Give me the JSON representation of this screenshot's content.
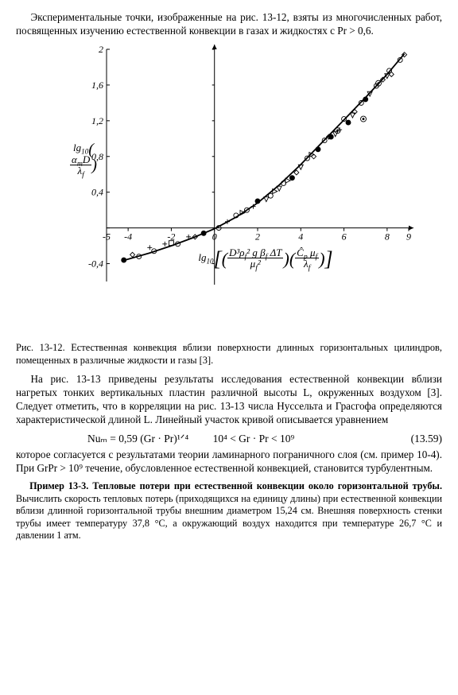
{
  "para1": "Экспериментальные точки, изображенные на рис. 13-12, взяты из многочисленных работ, посвященных изучению естественной конвекции в газах и жидкостях с Pr > 0,6.",
  "figure": {
    "caption_lead": "Рис. 13-12.",
    "caption_text": "Естественная конвекция вблизи поверхности длинных горизонтальных цилиндров, помещенных в различные жидкости и газы [3].",
    "xlabel": "lg₁₀[ (D³ρ²f g βf ΔT / μ²f) (Ĉp μf / λf) ]",
    "ylabel": "lg₁₀ (αm D / λf)",
    "xlim": [
      -5,
      9
    ],
    "ylim": [
      -0.6,
      2.0
    ],
    "xtick_positions": [
      -5,
      -4,
      -2,
      0,
      2,
      4,
      6,
      8,
      9
    ],
    "xtick_labels": [
      "-5",
      "-4",
      "-2",
      "0",
      "2",
      "4",
      "6",
      "8",
      "9"
    ],
    "ytick_positions": [
      -0.4,
      0,
      0.4,
      0.8,
      1.2,
      1.6,
      2.0
    ],
    "ytick_labels": [
      "-0,4",
      "0",
      "0,4",
      "0,8",
      "1,2",
      "1,6",
      "2"
    ],
    "curve": [
      [
        -4.3,
        -0.37
      ],
      [
        -3.0,
        -0.28
      ],
      [
        -2.0,
        -0.2
      ],
      [
        -1.0,
        -0.11
      ],
      [
        0.0,
        -0.01
      ],
      [
        1.0,
        0.12
      ],
      [
        2.0,
        0.28
      ],
      [
        3.0,
        0.48
      ],
      [
        4.0,
        0.71
      ],
      [
        5.0,
        0.96
      ],
      [
        6.0,
        1.21
      ],
      [
        7.0,
        1.46
      ],
      [
        8.0,
        1.72
      ],
      [
        8.8,
        1.95
      ]
    ],
    "markers": {
      "circle_open": [
        [
          -3.5,
          -0.32
        ],
        [
          -2.8,
          -0.26
        ],
        [
          -1.7,
          -0.18
        ],
        [
          0.2,
          0.0
        ],
        [
          1.0,
          0.14
        ],
        [
          1.5,
          0.2
        ],
        [
          2.6,
          0.36
        ],
        [
          3.2,
          0.5
        ],
        [
          4.3,
          0.78
        ],
        [
          5.1,
          0.98
        ],
        [
          6.0,
          1.22
        ],
        [
          6.8,
          1.4
        ],
        [
          7.5,
          1.59
        ],
        [
          8.1,
          1.76
        ],
        [
          8.6,
          1.88
        ]
      ],
      "circle_filled": [
        [
          -4.2,
          -0.36
        ],
        [
          -0.5,
          -0.06
        ],
        [
          2.0,
          0.3
        ],
        [
          3.6,
          0.56
        ],
        [
          4.8,
          0.88
        ],
        [
          5.4,
          1.02
        ],
        [
          6.2,
          1.18
        ],
        [
          7.0,
          1.44
        ]
      ],
      "plus": [
        [
          -3.0,
          -0.22
        ],
        [
          -2.3,
          -0.18
        ],
        [
          -1.2,
          -0.1
        ],
        [
          0.6,
          0.07
        ],
        [
          1.8,
          0.24
        ],
        [
          5.8,
          1.1
        ]
      ],
      "diamond_open": [
        [
          -3.8,
          -0.3
        ],
        [
          -0.9,
          -0.1
        ],
        [
          3.8,
          0.62
        ],
        [
          4.6,
          0.8
        ],
        [
          5.3,
          1.02
        ],
        [
          6.5,
          1.3
        ],
        [
          7.8,
          1.66
        ],
        [
          8.2,
          1.72
        ],
        [
          8.8,
          1.94
        ]
      ],
      "triangle_down": [
        [
          2.4,
          0.32
        ],
        [
          3.0,
          0.44
        ],
        [
          4.0,
          0.68
        ],
        [
          5.6,
          1.05
        ],
        [
          6.4,
          1.26
        ],
        [
          7.2,
          1.5
        ],
        [
          8.0,
          1.7
        ]
      ],
      "triangle_right": [
        [
          1.3,
          0.17
        ],
        [
          2.8,
          0.41
        ],
        [
          3.4,
          0.53
        ],
        [
          4.5,
          0.82
        ]
      ],
      "square_open": [
        [
          -2.0,
          -0.17
        ]
      ],
      "circle_dot": [
        [
          5.7,
          1.09
        ],
        [
          6.9,
          1.22
        ],
        [
          7.6,
          1.62
        ]
      ]
    },
    "colors": {
      "axis": "#000000",
      "curve": "#000000",
      "grid": "#ffffff",
      "bg": "#ffffff"
    },
    "line_width": 1.8,
    "axis_width": 1.0,
    "marker_size": 3.0,
    "font": {
      "tick": 12,
      "label": 13
    }
  },
  "para2": "На рис. 13-13 приведены результаты исследования естественной конвекции вблизи нагретых тонких вертикальных пластин различной высоты L, окруженных воздухом [3]. Следует отметить, что в корреляции на рис. 13-13 числа Нуссельта и Грасгофа определяются характеристической длиной L. Линейный участок кривой описывается уравнением",
  "equation": {
    "lhs": "Nuₘ = 0,59 (Gr · Pr)¹ᐟ⁴",
    "cond": "10⁴ < Gr · Pr < 10⁹",
    "num": "(13.59)"
  },
  "para3": "которое согласуется с результатами теории ламинарного пограничного слоя (см. пример 10-4). При GrPr > 10⁹ течение, обусловленное естественной конвекцией, становится турбулентным.",
  "example": {
    "lead": "Пример 13-3. Тепловые потери при естественной конвекции около горизонтальной трубы.",
    "body": "Вычислить скорость тепловых потерь (приходящихся на единицу длины) при естественной конвекции вблизи длинной горизонтальной трубы внешним диаметром 15,24 см. Внешняя поверхность стенки трубы имеет температуру 37,8 °C, а окружающий воздух находится при температуре 26,7 °C и давлении 1 атм."
  }
}
